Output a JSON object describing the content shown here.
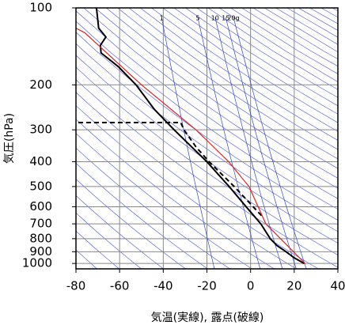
{
  "chart_data": {
    "type": "skewt",
    "xlabel": "気温(実線), 露点(破線)",
    "ylabel": "気圧(hPa)",
    "xlim": [
      -80,
      40
    ],
    "xticks": [
      -80,
      -60,
      -40,
      -20,
      0,
      20,
      40
    ],
    "ylim": [
      1050,
      100
    ],
    "yticks": [
      100,
      200,
      300,
      400,
      500,
      600,
      700,
      800,
      900,
      1000
    ],
    "log_y": true,
    "grid": true,
    "mixing_ratios": [
      {
        "value": 1,
        "label": "1"
      },
      {
        "value": 5,
        "label": "5"
      },
      {
        "value": 10,
        "label": "10"
      },
      {
        "value": 15,
        "label": "15"
      },
      {
        "value": 20,
        "label": "20g"
      }
    ],
    "mixing_ratio_color": "#3344cc",
    "series": [
      {
        "color": "#000000",
        "dash": false,
        "x": [
          24.6,
          20,
          16.3,
          12,
          9,
          4.7,
          -2,
          -9.8,
          -20,
          -35,
          -44,
          -52.5,
          -60.5,
          -68.5,
          -68.8,
          -66.3,
          -69.6,
          -70.6
        ],
        "values": [
          1000,
          950,
          900,
          850,
          800,
          700,
          600,
          500,
          400,
          300,
          250,
          200,
          170,
          150,
          140,
          130,
          120,
          100
        ]
      },
      {
        "color": "#000000",
        "dash": true,
        "x": [
          5,
          -7.5,
          -19,
          -25,
          -30.5,
          -32,
          -80
        ],
        "values": [
          650,
          500,
          400,
          350,
          300,
          281,
          281
        ]
      },
      {
        "color": "#e02020",
        "dash": false,
        "x": [
          25,
          7,
          -0.7,
          -10,
          -25,
          -50,
          -76,
          -80
        ],
        "values": [
          1000,
          700,
          500,
          400,
          300,
          200,
          125,
          120
        ]
      }
    ]
  }
}
